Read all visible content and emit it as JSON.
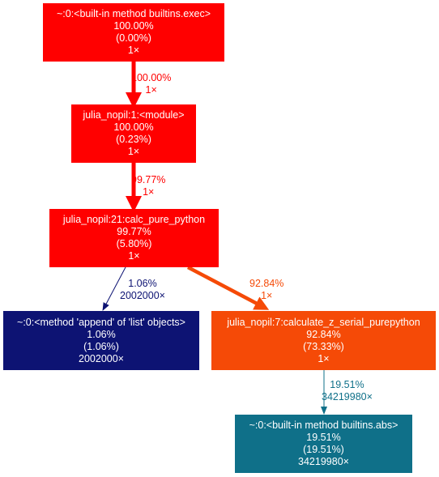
{
  "nodes": {
    "exec": {
      "lines": [
        "~:0:<built-in method builtins.exec>",
        "100.00%",
        "(0.00%)",
        "1×"
      ],
      "color": "#ff0000"
    },
    "module": {
      "lines": [
        "julia_nopil:1:<module>",
        "100.00%",
        "(0.23%)",
        "1×"
      ],
      "color": "#ff0000"
    },
    "calc": {
      "lines": [
        "julia_nopil:21:calc_pure_python",
        "99.77%",
        "(5.80%)",
        "1×"
      ],
      "color": "#ff0000"
    },
    "append": {
      "lines": [
        "~:0:<method 'append' of 'list' objects>",
        "1.06%",
        "(1.06%)",
        "2002000×"
      ],
      "color": "#0d1373"
    },
    "serial": {
      "lines": [
        "julia_nopil:7:calculate_z_serial_purepython",
        "92.84%",
        "(73.33%)",
        "1×"
      ],
      "color": "#f54a07"
    },
    "abs": {
      "lines": [
        "~:0:<built-in method builtins.abs>",
        "19.51%",
        "(19.51%)",
        "34219980×"
      ],
      "color": "#0f7089"
    }
  },
  "edges": {
    "exec_module": {
      "pct": "100.00%",
      "calls": "1×",
      "color": "#ff0000"
    },
    "module_calc": {
      "pct": "99.77%",
      "calls": "1×",
      "color": "#ff0000"
    },
    "calc_append": {
      "pct": "1.06%",
      "calls": "2002000×",
      "color": "#0d1373"
    },
    "calc_serial": {
      "pct": "92.84%",
      "calls": "1×",
      "color": "#f54a07"
    },
    "serial_abs": {
      "pct": "19.51%",
      "calls": "34219980×",
      "color": "#0f7089"
    }
  }
}
